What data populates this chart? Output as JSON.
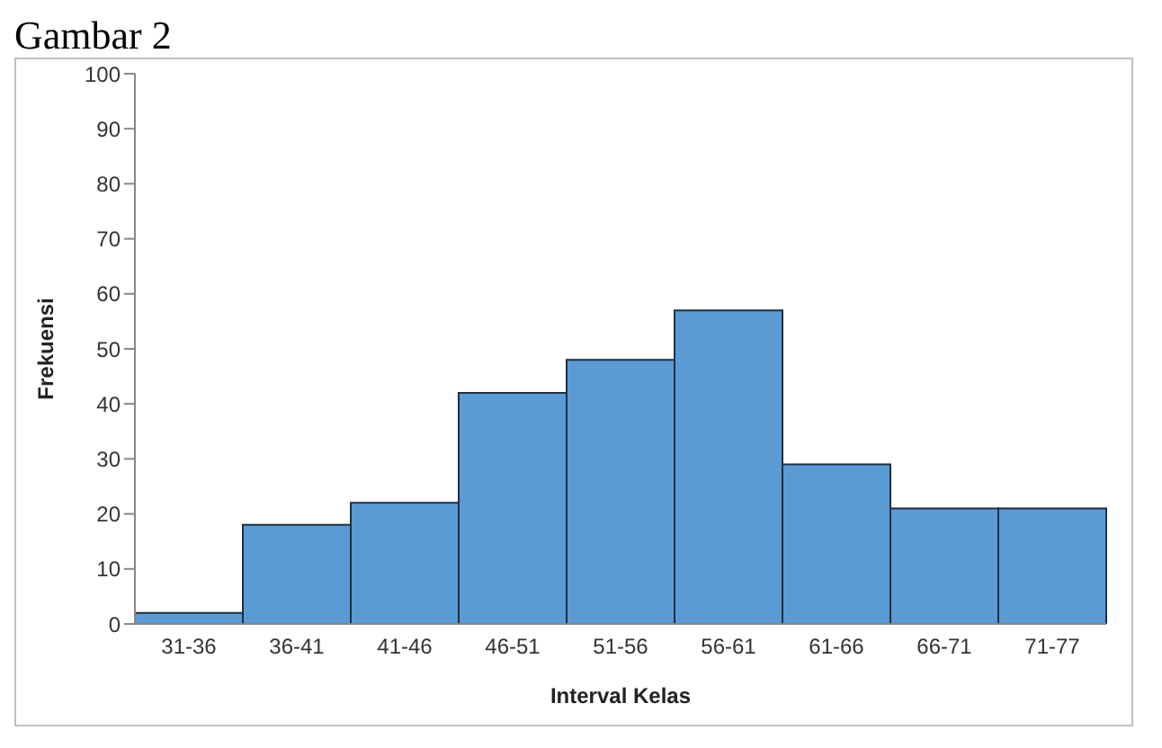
{
  "chart_data": {
    "type": "bar",
    "title": "Gambar 2",
    "xlabel": "Interval Kelas",
    "ylabel": "Frekuensi",
    "categories": [
      "31-36",
      "36-41",
      "41-46",
      "46-51",
      "51-56",
      "56-61",
      "61-66",
      "66-71",
      "71-77"
    ],
    "values": [
      2,
      18,
      22,
      42,
      48,
      57,
      29,
      21,
      21
    ],
    "color": "#5b9bd5",
    "ylim": [
      0,
      100
    ],
    "yticks": [
      0,
      10,
      20,
      30,
      40,
      50,
      60,
      70,
      80,
      90,
      100
    ],
    "grid": false,
    "legend": false
  }
}
